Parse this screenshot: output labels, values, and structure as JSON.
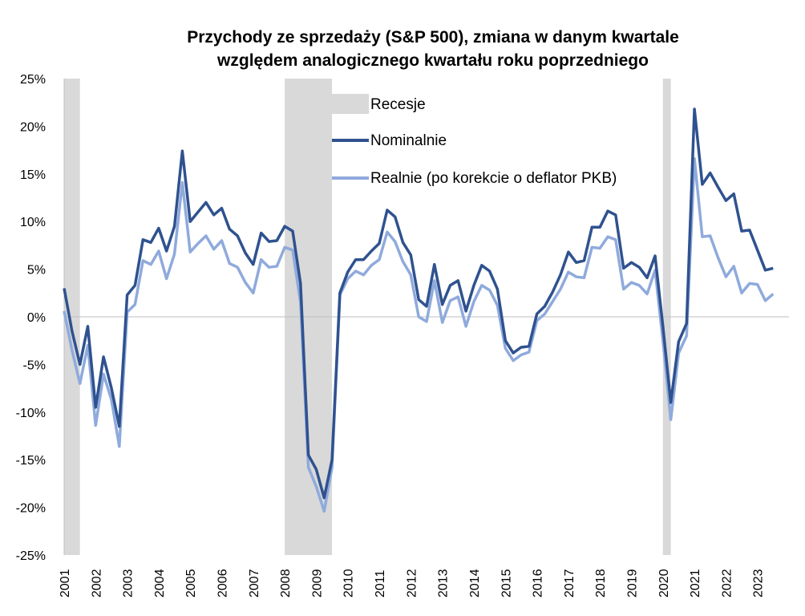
{
  "chart_data": {
    "type": "line",
    "title_line1": "Przychody ze sprzedaży (S&P 500), zmiana  w danym kwartale",
    "title_line2": "względem analogicznego  kwartału roku poprzedniego",
    "ylim": [
      -25,
      25
    ],
    "y_ticks": [
      25,
      20,
      15,
      10,
      5,
      0,
      -5,
      -10,
      -15,
      -20,
      -25
    ],
    "y_tick_labels": [
      "25%",
      "20%",
      "15%",
      "10%",
      "5%",
      "0%",
      "-5%",
      "-10%",
      "-15%",
      "-20%",
      "-25%"
    ],
    "x_start": 2001.0,
    "x_end": 2024.0,
    "years": [
      "2001",
      "2002",
      "2003",
      "2004",
      "2005",
      "2006",
      "2007",
      "2008",
      "2009",
      "2010",
      "2011",
      "2012",
      "2013",
      "2014",
      "2015",
      "2016",
      "2017",
      "2018",
      "2019",
      "2020",
      "2021",
      "2022",
      "2023"
    ],
    "recessions": [
      {
        "start": 2001.0,
        "end": 2001.5
      },
      {
        "start": 2008.0,
        "end": 2009.5
      },
      {
        "start": 2020.0,
        "end": 2020.25
      }
    ],
    "colors": {
      "nominal": "#2f528f",
      "real": "#8faadc",
      "recession": "#d9d9d9"
    },
    "series": [
      {
        "name": "Nominalnie",
        "values": [
          3.0,
          -1.5,
          -5.0,
          -1.0,
          -9.5,
          -4.2,
          -7.5,
          -11.5,
          2.3,
          3.3,
          8.1,
          7.8,
          9.3,
          6.9,
          9.5,
          17.4,
          10.0,
          11.0,
          12.0,
          10.7,
          11.4,
          9.2,
          8.5,
          6.7,
          5.5,
          8.8,
          7.9,
          8.0,
          9.5,
          9.0,
          3.5,
          -14.5,
          -16.0,
          -19.0,
          -15.0,
          2.5,
          4.7,
          6.0,
          6.0,
          6.9,
          7.7,
          11.2,
          10.5,
          7.8,
          6.5,
          1.8,
          1.1,
          5.5,
          1.3,
          3.3,
          3.8,
          0.6,
          3.3,
          5.4,
          4.8,
          2.9,
          -2.5,
          -3.8,
          -3.2,
          -3.1,
          0.3,
          1.1,
          2.6,
          4.4,
          6.8,
          5.7,
          5.9,
          9.4,
          9.4,
          11.1,
          10.7,
          5.1,
          5.7,
          5.2,
          4.1,
          6.4,
          -1.0,
          -9.0,
          -2.6,
          -0.7,
          21.8,
          13.9,
          15.1,
          13.6,
          12.2,
          12.9,
          9.0,
          9.1,
          7.0,
          4.9,
          5.1
        ]
      },
      {
        "name": "Realnie (po korekcie o deflator PKB)",
        "values": [
          0.6,
          -3.5,
          -7.0,
          -3.0,
          -11.4,
          -6.0,
          -8.7,
          -13.6,
          0.5,
          1.3,
          5.9,
          5.5,
          6.9,
          4.0,
          6.6,
          14.1,
          6.8,
          7.7,
          8.5,
          7.1,
          8.0,
          5.6,
          5.2,
          3.6,
          2.5,
          6.0,
          5.2,
          5.3,
          7.3,
          7.0,
          1.5,
          -15.8,
          -17.8,
          -20.4,
          -15.8,
          2.3,
          4.0,
          4.8,
          4.4,
          5.4,
          6.0,
          8.9,
          7.9,
          5.8,
          4.4,
          0.0,
          -0.5,
          3.8,
          -0.6,
          1.7,
          2.1,
          -1.0,
          1.6,
          3.3,
          2.8,
          1.2,
          -3.3,
          -4.6,
          -4.0,
          -3.7,
          -0.4,
          0.3,
          1.6,
          2.9,
          4.7,
          4.2,
          4.1,
          7.3,
          7.2,
          8.4,
          8.1,
          2.9,
          3.6,
          3.3,
          2.4,
          4.9,
          -2.5,
          -10.8,
          -3.8,
          -2.0,
          16.6,
          8.4,
          8.5,
          6.2,
          4.2,
          5.3,
          2.5,
          3.5,
          3.4,
          1.7,
          2.4
        ]
      }
    ],
    "legend": {
      "recession_label": "Recesje",
      "nominal_label": "Nominalnie",
      "real_label": "Realnie (po korekcie o deflator PKB)"
    }
  }
}
